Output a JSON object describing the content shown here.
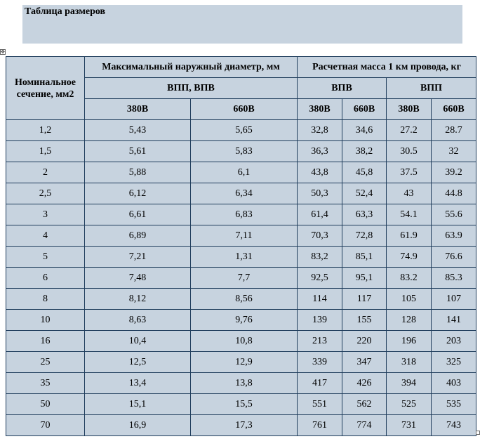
{
  "title": "Таблица размеров",
  "table": {
    "corner_header": "Номинальное сечение, мм2",
    "group_headers": {
      "diameter": "Максимальный наружный диаметр, мм",
      "mass": "Расчетная масса 1 км провода, кг"
    },
    "sub_headers": {
      "diameter_types": "ВПП, ВПВ",
      "mass_vpv": "ВПВ",
      "mass_vpp": "ВПП"
    },
    "voltage_headers": [
      "380В",
      "660В",
      "380В",
      "660В",
      "380В",
      "660В"
    ],
    "rows": [
      [
        "1,2",
        "5,43",
        "5,65",
        "32,8",
        "34,6",
        "27.2",
        "28.7"
      ],
      [
        "1,5",
        "5,61",
        "5,83",
        "36,3",
        "38,2",
        "30.5",
        "32"
      ],
      [
        "2",
        "5,88",
        "6,1",
        "43,8",
        "45,8",
        "37.5",
        "39.2"
      ],
      [
        "2,5",
        "6,12",
        "6,34",
        "50,3",
        "52,4",
        "43",
        "44.8"
      ],
      [
        "3",
        "6,61",
        "6,83",
        "61,4",
        "63,3",
        "54.1",
        "55.6"
      ],
      [
        "4",
        "6,89",
        "7,11",
        "70,3",
        "72,8",
        "61.9",
        "63.9"
      ],
      [
        "5",
        "7,21",
        "1,31",
        "83,2",
        "85,1",
        "74.9",
        "76.6"
      ],
      [
        "6",
        "7,48",
        "7,7",
        "92,5",
        "95,1",
        "83.2",
        "85.3"
      ],
      [
        "8",
        "8,12",
        "8,56",
        "114",
        "117",
        "105",
        "107"
      ],
      [
        "10",
        "8,63",
        "9,76",
        "139",
        "155",
        "128",
        "141"
      ],
      [
        "16",
        "10,4",
        "10,8",
        "213",
        "220",
        "196",
        "203"
      ],
      [
        "25",
        "12,5",
        "12,9",
        "339",
        "347",
        "318",
        "325"
      ],
      [
        "35",
        "13,4",
        "13,8",
        "417",
        "426",
        "394",
        "403"
      ],
      [
        "50",
        "15,1",
        "15,5",
        "551",
        "562",
        "525",
        "535"
      ],
      [
        "70",
        "16,9",
        "17,3",
        "761",
        "774",
        "731",
        "743"
      ]
    ]
  },
  "colors": {
    "cell_background": "#c7d3df",
    "border": "#1f3d5c"
  },
  "icons": {
    "move_handle": "table-move-handle-icon",
    "resize_handle": "table-resize-handle-icon"
  }
}
